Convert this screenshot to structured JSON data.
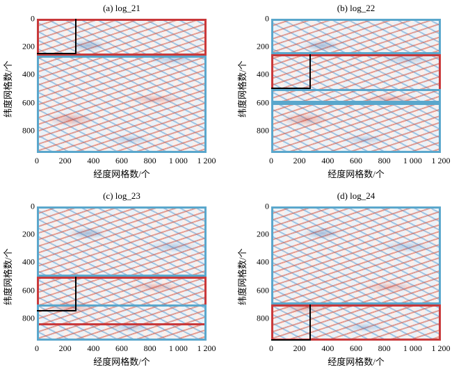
{
  "common": {
    "x_label": "经度网格数/个",
    "y_label": "纬度网格数/个",
    "x_ticks": [
      "0",
      "200",
      "400",
      "600",
      "800",
      "1 000",
      "1 200"
    ],
    "y_ticks": [
      "0",
      "200",
      "400",
      "600",
      "800"
    ],
    "red_color": "#c9393b",
    "blue_color": "#5aa7cc",
    "black_color": "#000000"
  },
  "panels": [
    {
      "title": "(a) log_21"
    },
    {
      "title": "(b) log_22"
    },
    {
      "title": "(c) log_23"
    },
    {
      "title": "(d) log_24"
    }
  ]
}
